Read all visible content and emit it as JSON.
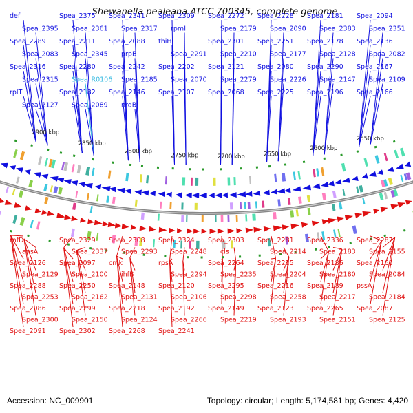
{
  "title": "Shewanella pealeana ATCC 700345, complete genome",
  "footer": {
    "accession": "Accession: NC_009901",
    "summary": "Topology: circular; Length: 5,174,581 bp; Genes: 4,420"
  },
  "colors": {
    "forward": "#1010e0",
    "reverse": "#e01010",
    "rna": "#30b8e0",
    "backbone": "#888888"
  },
  "scale_labels": [
    "2900 kbp",
    "2850 kbp",
    "2800 kbp",
    "2750 kbp",
    "2700 kbp",
    "2650 kbp",
    "2600 kbp",
    "2550 kbp"
  ],
  "top_labels": [
    "def",
    "Spea_2375",
    "Spea_2341",
    "Spea_2309",
    "Spea_2272",
    "Spea_2228",
    "Spea_2181",
    "Spea_2094",
    "Spea_2395",
    "Spea_2361",
    "Spea_2317",
    "rpmI",
    "Spea_2179",
    "Spea_2090",
    "Spea_2383",
    "Spea_2351",
    "Spea_2289",
    "Spea_2211",
    "Spea_2088",
    "thiH",
    "Spea_2301",
    "Spea_2251",
    "Spea_2178",
    "Spea_2136",
    "Spea_2083",
    "Spea_2345",
    "prpB",
    "Spea_2291",
    "Spea_2210",
    "Spea_2177",
    "Spea_2128",
    "Spea_2082",
    "Spea_2316",
    "Spea_2280",
    "Spea_2242",
    "Spea_2202",
    "Spea_2121",
    "Spea_2080",
    "Spea_2290",
    "Spea_2167",
    "Spea_2315",
    "Spea_R0106",
    "Spea_2185",
    "Spea_2070",
    "Spea_2279",
    "Spea_2226",
    "Spea_2147",
    "Spea_2109",
    "rplT",
    "Spea_2182",
    "Spea_2146",
    "Spea_2107",
    "Spea_2068",
    "Spea_2225",
    "Spea_2196",
    "Spea_2166",
    "Spea_2127",
    "Spea_2089",
    "nrdB"
  ],
  "bottom_labels": [
    "rnfD",
    "Spea_2329",
    "Spea_2308",
    "Spea_2324",
    "Spea_2303",
    "Spea_2281",
    "Spea_2336",
    "Spea_2287",
    "ansA",
    "Spea_2337",
    "Spea_2293",
    "Spea_2248",
    "cls",
    "Spea_2214",
    "Spea_2183",
    "Spea_2155",
    "Spea_2126",
    "Spea_2097",
    "cmk",
    "rpsA",
    "Spea_2264",
    "Spea_2215",
    "Spea_2186",
    "Spea_2160",
    "Spea_2129",
    "Spea_2100",
    "ihfB",
    "Spea_2294",
    "Spea_2235",
    "Spea_2204",
    "Spea_2180",
    "Spea_2084",
    "Spea_2288",
    "Spea_2250",
    "Spea_2148",
    "Spea_2120",
    "Spea_2295",
    "Spea_2216",
    "Spea_2189",
    "pssA",
    "Spea_2253",
    "Spea_2162",
    "Spea_2131",
    "Spea_2106",
    "Spea_2298",
    "Spea_2258",
    "Spea_2217",
    "Spea_2184",
    "Spea_2086",
    "Spea_2299",
    "Spea_2218",
    "Spea_2192",
    "Spea_2149",
    "Spea_2123",
    "Spea_2265",
    "Spea_2087",
    "Spea_2300",
    "Spea_2150",
    "Spea_2124",
    "Spea_2266",
    "Spea_2219",
    "Spea_2193",
    "Spea_2151",
    "Spea_2125",
    "Spea_2091",
    "Spea_2302",
    "Spea_2268",
    "Spea_2241"
  ]
}
